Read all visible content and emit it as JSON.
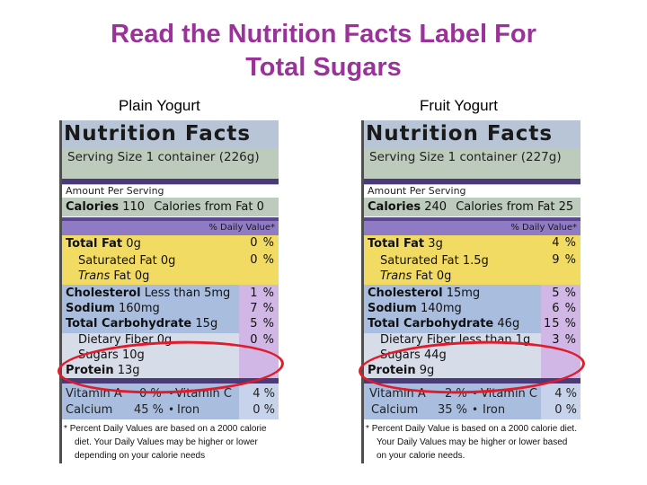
{
  "title": {
    "line1": "Read the Nutrition Facts Label For",
    "line2": "Total Sugars"
  },
  "columns": [
    {
      "heading": "Plain Yogurt",
      "nf_title": "Nutrition Facts",
      "serving": "Serving Size 1 container (226g)",
      "amount_per_serving": "Amount Per Serving",
      "calories_label": "Calories",
      "calories_value": "110",
      "calories_fat": "Calories from Fat  0",
      "dv_header": "% Daily Value*",
      "total_fat_label": "Total Fat",
      "total_fat_value": "0g",
      "total_fat_pct": "0 %",
      "sat_fat": "Saturated Fat  0g",
      "sat_fat_pct": "0 %",
      "trans_fat_italic": "Trans",
      "trans_fat_rest": " Fat  0g",
      "cholesterol_label": "Cholesterol",
      "cholesterol_value": "Less than 5mg",
      "cholesterol_pct": "1 %",
      "sodium_label": "Sodium",
      "sodium_value": "160mg",
      "sodium_pct": "7 %",
      "carb_label": "Total Carbohydrate",
      "carb_value": "15g",
      "carb_pct": "5 %",
      "fiber": "Dietary Fiber 0g",
      "fiber_pct": "0 %",
      "sugars": "Sugars  10g",
      "protein_label": "Protein",
      "protein_value": "13g",
      "vit_a_label": "Vitamin A",
      "vit_a_pct": "0 %",
      "vit_c_label": "Vitamin C",
      "vit_c_pct": "4 %",
      "calcium_label": "Calcium",
      "calcium_pct": "45 %",
      "iron_label": "Iron",
      "iron_pct": "0 %",
      "footnote_1": "Percent Daily Values are based on a 2000 calorie",
      "footnote_2": "diet.  Your Daily Values may be higher or lower",
      "footnote_3": "depending on your calorie needs"
    },
    {
      "heading": "Fruit Yogurt",
      "nf_title": "Nutrition Facts",
      "serving": "Serving Size 1 container (227g)",
      "amount_per_serving": "Amount Per Serving",
      "calories_label": "Calories",
      "calories_value": "240",
      "calories_fat": "Calories from Fat 25",
      "dv_header": "% Daily Value*",
      "total_fat_label": "Total Fat",
      "total_fat_value": "3g",
      "total_fat_pct": "4 %",
      "sat_fat": "Saturated Fat  1.5g",
      "sat_fat_pct": "9 %",
      "trans_fat_italic": "Trans",
      "trans_fat_rest": " Fat  0g",
      "cholesterol_label": "Cholesterol",
      "cholesterol_value": "15mg",
      "cholesterol_pct": "5 %",
      "sodium_label": "Sodium",
      "sodium_value": "140mg",
      "sodium_pct": "6 %",
      "carb_label": "Total Carbohydrate",
      "carb_value": "46g",
      "carb_pct": "15 %",
      "fiber": "Dietary Fiber  less than 1g",
      "fiber_pct": "3 %",
      "sugars": "Sugars 44g",
      "protein_label": "Protein",
      "protein_value": "9g",
      "vit_a_label": "Vitamin A",
      "vit_a_pct": "2 %",
      "vit_c_label": "Vitamin C",
      "vit_c_pct": "4 %",
      "calcium_label": "Calcium",
      "calcium_pct": "35 %",
      "iron_label": "Iron",
      "iron_pct": "0 %",
      "footnote_1": "Percent Daily Value is based on a 2000 calorie diet.",
      "footnote_2": "Your Daily Values may be higher or lower based",
      "footnote_3": "on your calorie needs."
    }
  ],
  "footnote_star": "*",
  "colors": {
    "title": "#993399",
    "highlight_ellipse": "#e11b2b",
    "header_band": "#b7c5d6",
    "serving_band": "#bccbbc",
    "fat_band": "#f2db62",
    "carb_band": "#a9bedf",
    "dv_band": "#8f7ac4",
    "percent_column": "#d1b7e6"
  }
}
